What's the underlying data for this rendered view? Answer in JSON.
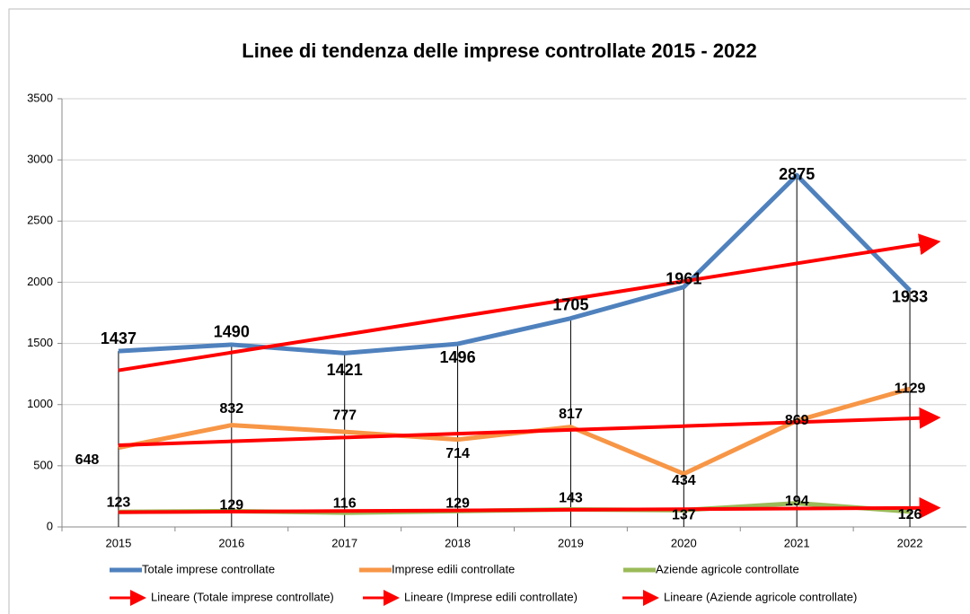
{
  "chart_data": {
    "type": "line",
    "title": "Linee di tendenza delle imprese controllate 2015 - 2022",
    "categories": [
      "2015",
      "2016",
      "2017",
      "2018",
      "2019",
      "2020",
      "2021",
      "2022"
    ],
    "series": [
      {
        "name": "Totale imprese controllate",
        "color": "#4f81bd",
        "values": [
          1437,
          1490,
          1421,
          1496,
          1705,
          1961,
          2875,
          1933
        ]
      },
      {
        "name": "Imprese edili controllate",
        "color": "#f79646",
        "values": [
          648,
          832,
          777,
          714,
          817,
          434,
          869,
          1129
        ]
      },
      {
        "name": "Aziende agricole controllate",
        "color": "#9bbb59",
        "values": [
          123,
          129,
          116,
          129,
          143,
          137,
          194,
          126
        ]
      }
    ],
    "trendlines": [
      {
        "name": "Lineare (Totale imprese controllate)",
        "color": "#ff0000",
        "values": [
          1280,
          1426,
          1571,
          1717,
          1862,
          2008,
          2154,
          2299
        ]
      },
      {
        "name": "Lineare (Imprese edili controllate)",
        "color": "#ff0000",
        "values": [
          668,
          700,
          731,
          762,
          793,
          824,
          856,
          887
        ]
      },
      {
        "name": "Lineare (Aziende agricole controllate)",
        "color": "#ff0000",
        "values": [
          120,
          125,
          130,
          135,
          140,
          145,
          150,
          155
        ]
      }
    ],
    "ylim": [
      0,
      3500
    ],
    "yticks": [
      0,
      500,
      1000,
      1500,
      2000,
      2500,
      3000,
      3500
    ],
    "grid": true,
    "legend": "bottom"
  }
}
